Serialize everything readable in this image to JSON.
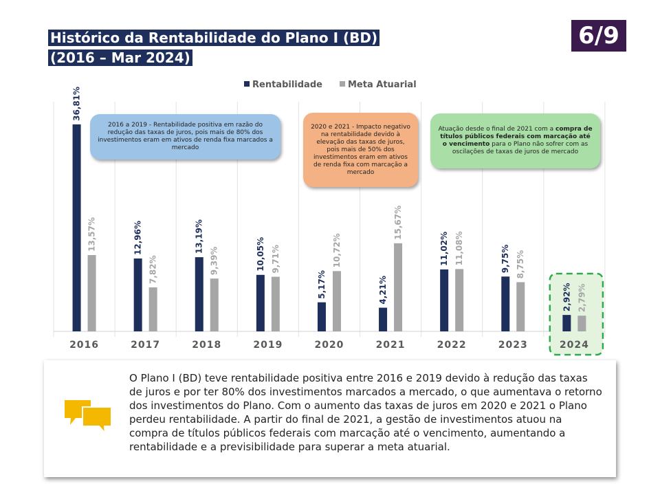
{
  "title": {
    "line1": "Histórico da Rentabilidade do Plano I (BD)",
    "line2": "(2016 – Mar 2024)"
  },
  "page_indicator": "6/9",
  "colors": {
    "rentabilidade": "#1f2f5c",
    "meta": "#a6a6a6",
    "highlight": "#2eaa4a",
    "title_bg": "#1f2f5c",
    "badge_bg": "#3b1a4d"
  },
  "chart_data": {
    "type": "bar",
    "categories": [
      "2016",
      "2017",
      "2018",
      "2019",
      "2020",
      "2021",
      "2022",
      "2023",
      "2024"
    ],
    "series": [
      {
        "name": "Rentabilidade",
        "values": [
          36.81,
          12.96,
          13.19,
          10.05,
          5.17,
          4.21,
          11.02,
          9.75,
          2.92
        ],
        "labels": [
          "36,81%",
          "12,96%",
          "13,19%",
          "10,05%",
          "5,17%",
          "4,21%",
          "11,02%",
          "9,75%",
          "2,92%"
        ]
      },
      {
        "name": "Meta Atuarial",
        "values": [
          13.57,
          7.82,
          9.39,
          9.71,
          10.72,
          15.67,
          11.08,
          8.75,
          2.79
        ],
        "labels": [
          "13,57%",
          "7,82%",
          "9,39%",
          "9,71%",
          "10,72%",
          "15,67%",
          "11,08%",
          "8,75%",
          "2,79%"
        ]
      }
    ],
    "ylim": [
      0,
      37.5
    ],
    "grid": "vertical separators",
    "legend": "top",
    "highlighted_category": "2024"
  },
  "callouts": {
    "c1": "2016 a 2019 - Rentabilidade positiva em razão do redução das taxas de juros, pois mais de 80% dos investimentos eram em ativos de renda fixa marcados a mercado",
    "c2": "2020 e 2021 - Impacto negativo na rentabilidade devido à elevação das taxas de juros, pois mais de 50% dos investimentos eram em ativos de renda fixa com marcação a mercado",
    "c3_pre": "Atuação desde o final de 2021 com a",
    "c3_bold": "compra de títulos públicos federais com marcação até o vencimento",
    "c3_post": "para o Plano não sofrer com as oscilações de taxas de juros de mercado"
  },
  "summary": {
    "icon": "chat-bubbles-icon",
    "text": "O Plano I (BD) teve rentabilidade positiva entre 2016 e 2019 devido à redução das taxas de juros e por ter 80% dos investimentos marcados a mercado, o que aumentava o retorno dos investimentos do Plano. Com o aumento das taxas de juros em 2020 e 2021 o Plano perdeu rentabilidade. A partir do final de 2021, a gestão de investimentos atuou na compra de títulos públicos federais com marcação até o vencimento, aumentando a rentabilidade e a previsibilidade para superar a meta atuarial."
  }
}
